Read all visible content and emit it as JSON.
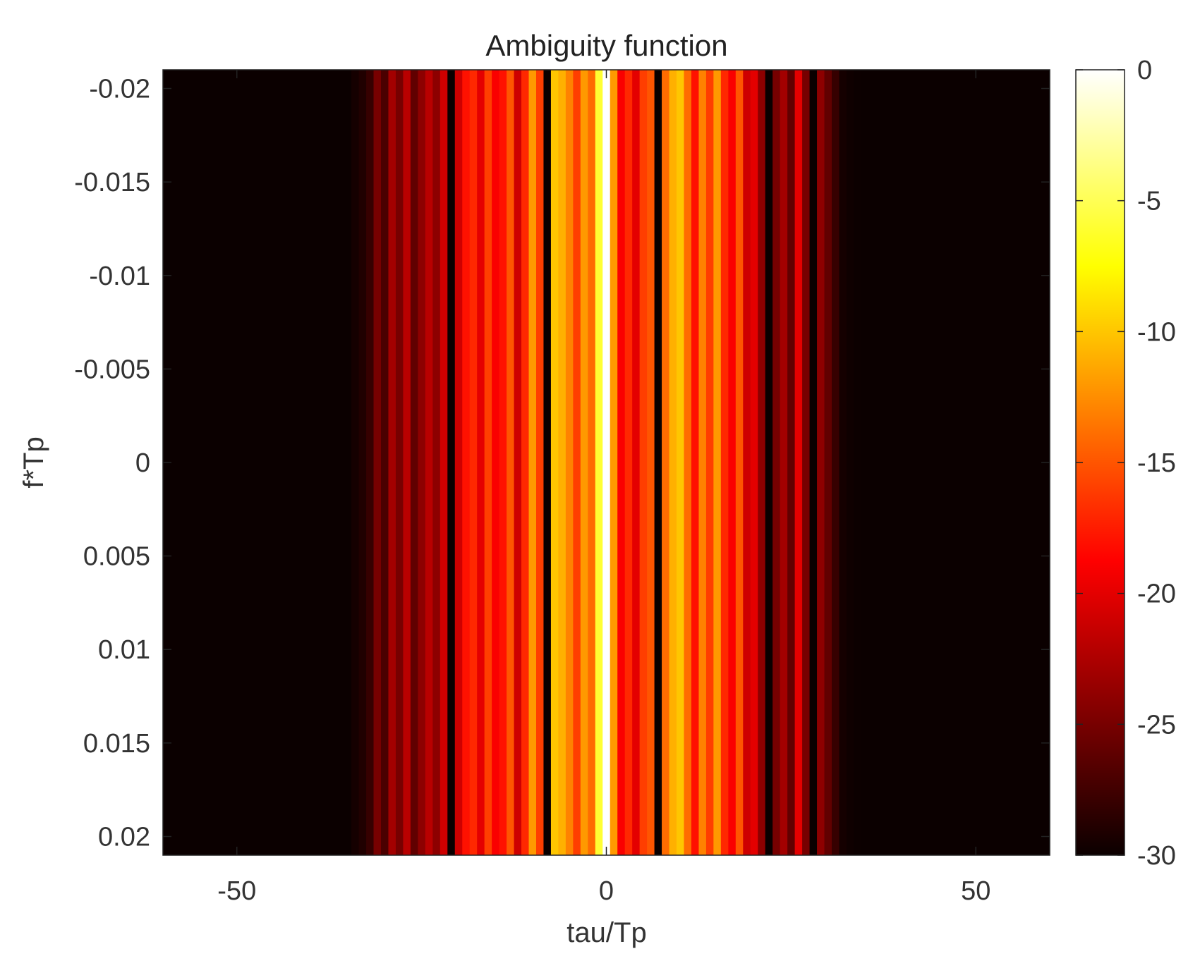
{
  "chart_data": {
    "type": "heatmap",
    "title": "Ambiguity function",
    "xlabel": "tau/Tp",
    "ylabel": "f*Tp",
    "xlim": [
      -60,
      60
    ],
    "ylim": [
      -0.021,
      0.021
    ],
    "y_reversed": true,
    "xticks": [
      -50,
      0,
      50
    ],
    "xtick_labels": [
      "-50",
      "0",
      "50"
    ],
    "yticks": [
      -0.02,
      -0.015,
      -0.01,
      -0.005,
      0,
      0.005,
      0.01,
      0.015,
      0.02
    ],
    "ytick_labels": [
      "-0.02",
      "-0.015",
      "-0.01",
      "-0.005",
      "0",
      "0.005",
      "0.01",
      "0.015",
      "0.02"
    ],
    "colorbar": {
      "label": "",
      "range": [
        -30,
        0
      ],
      "ticks": [
        0,
        -5,
        -10,
        -15,
        -20,
        -25,
        -30
      ],
      "tick_labels": [
        "0",
        "-5",
        "-10",
        "-15",
        "-20",
        "-25",
        "-30"
      ],
      "colormap": "hot"
    },
    "tau_bins": [
      -34,
      -33,
      -32,
      -31,
      -30,
      -29,
      -28,
      -27,
      -26,
      -25,
      -24,
      -23,
      -22,
      -21,
      -20,
      -19,
      -18,
      -17,
      -16,
      -15,
      -14,
      -13,
      -12,
      -11,
      -10,
      -9,
      -8,
      -7,
      -6,
      -5,
      -4,
      -3,
      -2,
      -1,
      0,
      1,
      2,
      3,
      4,
      5,
      6,
      7,
      8,
      9,
      10,
      11,
      12,
      13,
      14,
      15,
      16,
      17,
      18,
      19,
      20,
      21,
      22,
      23,
      24,
      25,
      26,
      27,
      28,
      29,
      30,
      31,
      32,
      33,
      34
    ],
    "values_db": [
      -29.5,
      -29,
      -28,
      -25,
      -27,
      -23,
      -25,
      -22,
      -26,
      -24,
      -22,
      -24,
      -21,
      -30,
      -21,
      -18,
      -17,
      -20,
      -16,
      -19,
      -18,
      -15,
      -21,
      -17,
      -12,
      -16,
      -30,
      -10,
      -11,
      -13,
      -16,
      -12,
      -14,
      -6,
      0,
      -12,
      -19,
      -17,
      -20,
      -16,
      -15,
      -30,
      -14,
      -11,
      -10,
      -14,
      -18,
      -13,
      -16,
      -12,
      -17,
      -19,
      -15,
      -21,
      -20,
      -24,
      -30,
      -25,
      -23,
      -26,
      -20,
      -25,
      -30,
      -24,
      -26,
      -28,
      -29.5,
      -29.8,
      -29.9
    ],
    "floor_db": -30
  }
}
